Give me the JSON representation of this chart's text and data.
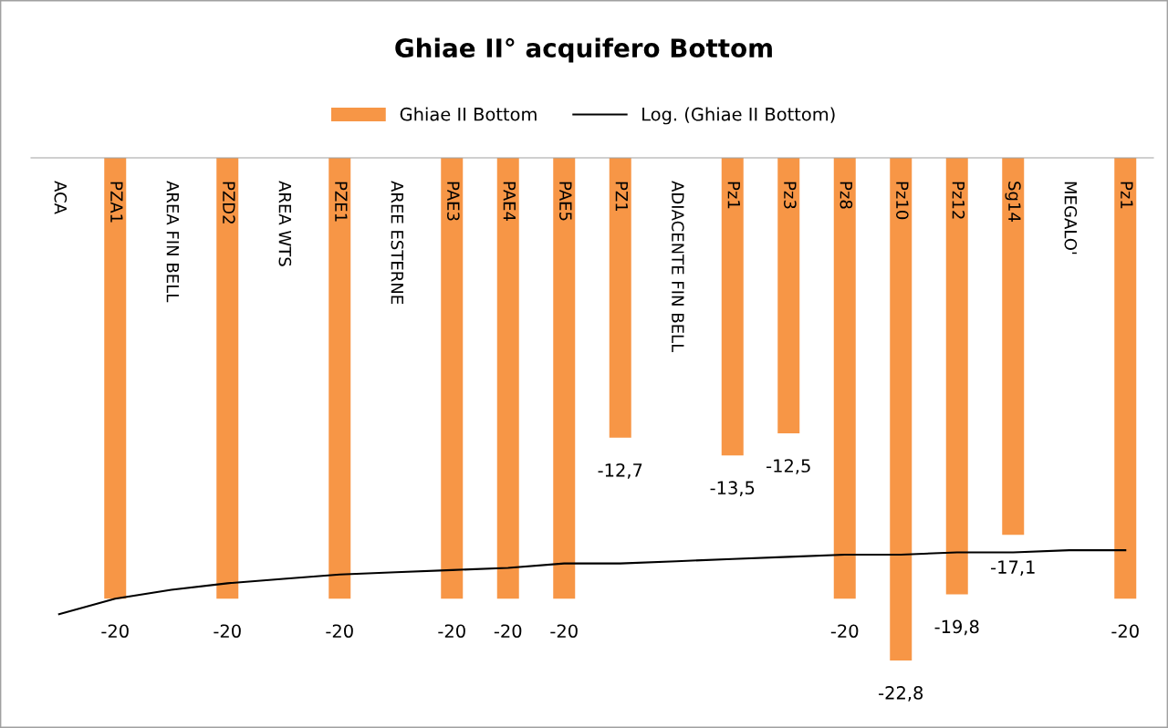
{
  "chart_data": {
    "type": "bar",
    "title": "Ghiae II° acquifero Bottom",
    "categories": [
      "ACA",
      "PZA1",
      "AREA FIN BELL",
      "PZD2",
      "AREA WTS",
      "PZE1",
      "AREE ESTERNE",
      "PAE3",
      "PAE4",
      "PAE5",
      "PZ1",
      "ADIACENTE FIN BELL",
      "Pz1",
      "Pz3",
      "Pz8",
      "Pz10",
      "Pz12",
      "Sg14",
      "MEGALO'",
      "Pz1"
    ],
    "series": [
      {
        "name": "Ghiae II Bottom",
        "color": "#f79646",
        "values": [
          null,
          -20,
          null,
          -20,
          null,
          -20,
          null,
          -20,
          -20,
          -20,
          -12.7,
          null,
          -13.5,
          -12.5,
          -20,
          -22.8,
          -19.8,
          -17.1,
          null,
          -20
        ],
        "value_labels": [
          null,
          "-20",
          null,
          "-20",
          null,
          "-20",
          null,
          "-20",
          "-20",
          "-20",
          "-12,7",
          null,
          "-13,5",
          "-12,5",
          "-20",
          "-22,8",
          "-19,8",
          "-17,1",
          null,
          "-20"
        ]
      },
      {
        "name": "Log. (Ghiae II Bottom)",
        "type": "line",
        "color": "#000000",
        "values": [
          -20.7,
          -20.0,
          -19.6,
          -19.3,
          -19.1,
          -18.9,
          -18.8,
          -18.7,
          -18.6,
          -18.4,
          -18.4,
          -18.3,
          -18.2,
          -18.1,
          -18.0,
          -18.0,
          -17.9,
          -17.9,
          -17.8,
          -17.8
        ]
      }
    ],
    "legend": "top"
  }
}
